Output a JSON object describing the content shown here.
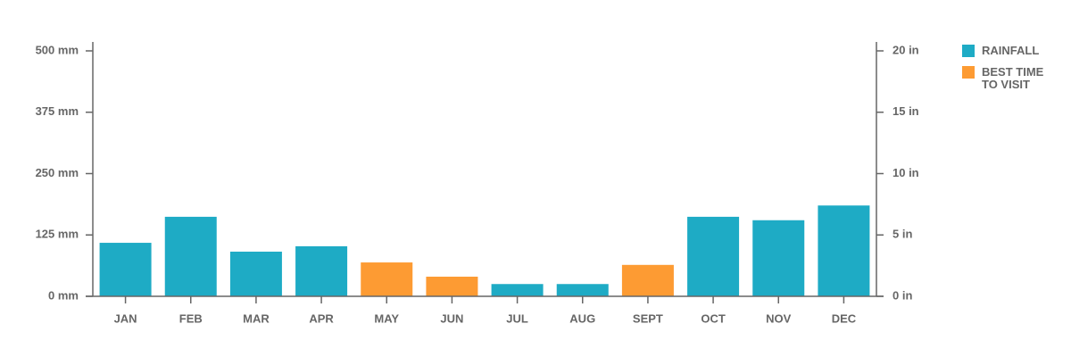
{
  "chart_data": {
    "type": "bar",
    "categories": [
      "JAN",
      "FEB",
      "MAR",
      "APR",
      "MAY",
      "JUN",
      "JUL",
      "AUG",
      "SEPT",
      "OCT",
      "NOV",
      "DEC"
    ],
    "series": [
      {
        "name": "RAINFALL",
        "color": "#1eabc5",
        "values": [
          109,
          162,
          91,
          102,
          null,
          null,
          25,
          25,
          null,
          162,
          155,
          185
        ]
      },
      {
        "name": "BEST TIME TO VISIT",
        "color": "#fd9b33",
        "values": [
          null,
          null,
          null,
          null,
          69,
          40,
          null,
          null,
          64,
          null,
          null,
          null
        ]
      }
    ],
    "ylim": [
      0,
      500
    ],
    "yticks": [
      {
        "value": 0,
        "label": "0 mm"
      },
      {
        "value": 125,
        "label": "125 mm"
      },
      {
        "value": 250,
        "label": "250 mm"
      },
      {
        "value": 375,
        "label": "375 mm"
      },
      {
        "value": 500,
        "label": "500 mm"
      }
    ],
    "y2lim": [
      0,
      20
    ],
    "y2ticks": [
      {
        "value": 0,
        "label": "0 in"
      },
      {
        "value": 5,
        "label": "5 in"
      },
      {
        "value": 10,
        "label": "10 in"
      },
      {
        "value": 15,
        "label": "15 in"
      },
      {
        "value": 20,
        "label": "20 in"
      }
    ],
    "legend": "right"
  }
}
